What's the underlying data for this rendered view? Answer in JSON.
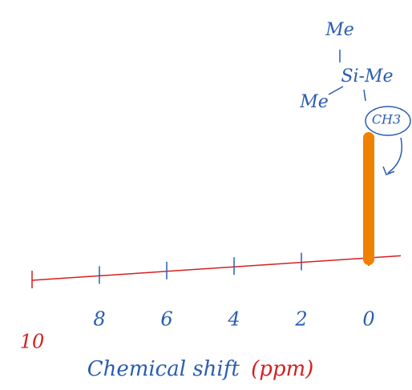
{
  "chart_data": {
    "type": "stick",
    "xlabel": "Chemical shift",
    "xlabel_unit": "(ppm)",
    "xlim": [
      10,
      0
    ],
    "xticks": [
      10,
      8,
      6,
      4,
      2,
      0
    ],
    "x": [
      0
    ],
    "color": "#f08000",
    "axis_color": "#d42020",
    "label_color": "#2a5db0",
    "annotation": {
      "top": "Me",
      "center": "Si-Me",
      "left": "Me",
      "bottom": "CH3"
    }
  }
}
